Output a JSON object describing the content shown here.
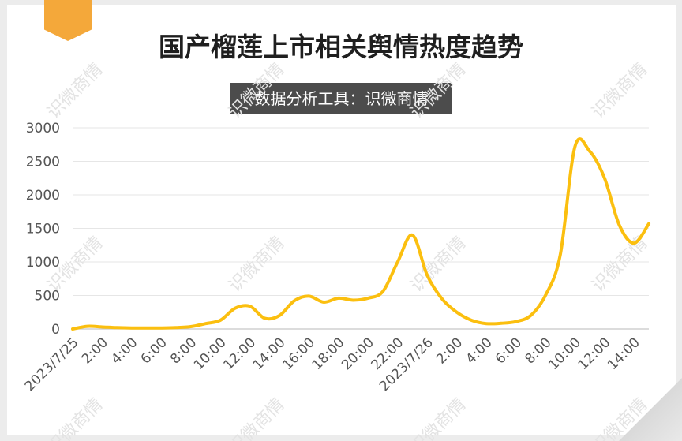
{
  "page": {
    "title": "国产榴莲上市相关舆情热度趋势",
    "subtitle": "数据分析工具：识微商情",
    "watermark": "识微商情",
    "colors": {
      "line": "#fbbf0f",
      "accent": "#f4a83a",
      "subtitle_bg": "#4c4c4c"
    }
  },
  "chart_data": {
    "type": "line",
    "title": "国产榴莲上市相关舆情热度趋势",
    "xlabel": "",
    "ylabel": "",
    "ylim": [
      0,
      3000
    ],
    "yticks": [
      0,
      500,
      1000,
      1500,
      2000,
      2500,
      3000
    ],
    "grid": true,
    "legend": "none",
    "x_tick_labels": [
      "2023/7/25",
      "2:00",
      "4:00",
      "6:00",
      "8:00",
      "10:00",
      "12:00",
      "14:00",
      "16:00",
      "18:00",
      "20:00",
      "22:00",
      "2023/7/26",
      "2:00",
      "4:00",
      "6:00",
      "8:00",
      "10:00",
      "12:00",
      "14:00"
    ],
    "x": [
      "2023/7/25 0:00",
      "2023/7/25 1:00",
      "2023/7/25 2:00",
      "2023/7/25 3:00",
      "2023/7/25 4:00",
      "2023/7/25 5:00",
      "2023/7/25 6:00",
      "2023/7/25 7:00",
      "2023/7/25 8:00",
      "2023/7/25 9:00",
      "2023/7/25 10:00",
      "2023/7/25 11:00",
      "2023/7/25 12:00",
      "2023/7/25 13:00",
      "2023/7/25 14:00",
      "2023/7/25 15:00",
      "2023/7/25 16:00",
      "2023/7/25 17:00",
      "2023/7/25 18:00",
      "2023/7/25 19:00",
      "2023/7/25 20:00",
      "2023/7/25 21:00",
      "2023/7/25 22:00",
      "2023/7/25 23:00",
      "2023/7/26 0:00",
      "2023/7/26 1:00",
      "2023/7/26 2:00",
      "2023/7/26 3:00",
      "2023/7/26 4:00",
      "2023/7/26 5:00",
      "2023/7/26 6:00",
      "2023/7/26 7:00",
      "2023/7/26 8:00",
      "2023/7/26 9:00",
      "2023/7/26 10:00",
      "2023/7/26 11:00",
      "2023/7/26 12:00",
      "2023/7/26 13:00",
      "2023/7/26 14:00",
      "2023/7/26 15:00"
    ],
    "series": [
      {
        "color": "#fbbf0f",
        "values": [
          0,
          40,
          30,
          20,
          15,
          15,
          15,
          20,
          35,
          80,
          130,
          310,
          340,
          160,
          200,
          420,
          490,
          400,
          460,
          430,
          460,
          560,
          1000,
          1400,
          800,
          450,
          250,
          130,
          80,
          85,
          110,
          200,
          500,
          1100,
          2720,
          2650,
          2250,
          1550,
          1280,
          1570
        ]
      }
    ]
  }
}
